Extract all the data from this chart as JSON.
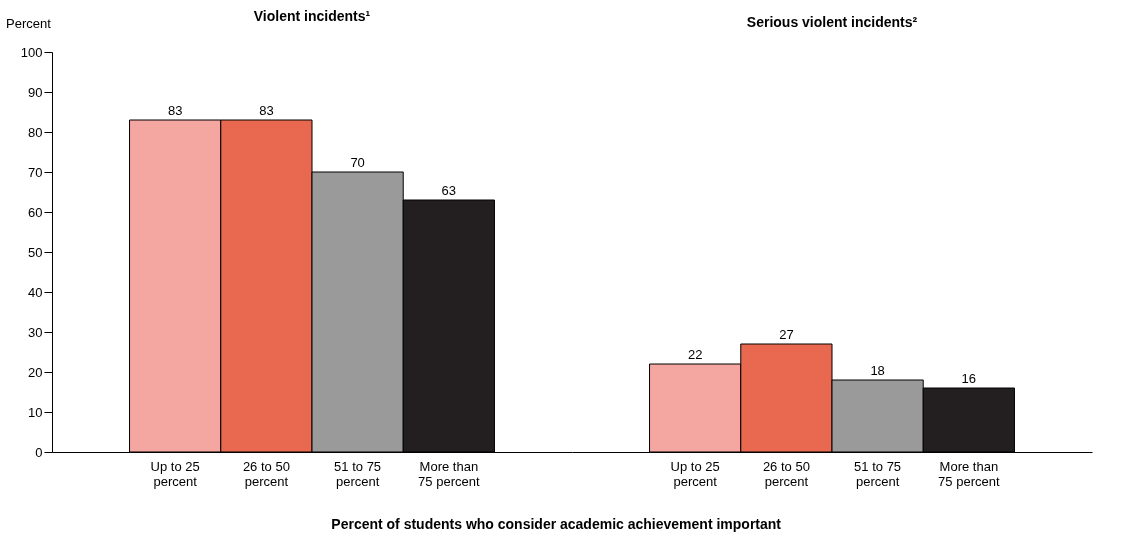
{
  "chart_data": [
    {
      "type": "bar",
      "title": "Violent incidents¹",
      "ylabel": "Percent",
      "xlabel": "Percent of students who consider academic achievement important",
      "categories": [
        "Up to 25 percent",
        "26 to 50 percent",
        "51 to 75 percent",
        "More than 75 percent"
      ],
      "values": [
        83,
        83,
        70,
        63
      ],
      "colors": [
        "#f4a6a0",
        "#e8694f",
        "#9a9a9a",
        "#231f20"
      ],
      "ylim": [
        0,
        100
      ],
      "yticks": [
        0,
        10,
        20,
        30,
        40,
        50,
        60,
        70,
        80,
        90,
        100
      ],
      "data_labels": true,
      "grid": false
    },
    {
      "type": "bar",
      "title": "Serious violent incidents²",
      "categories": [
        "Up to 25 percent",
        "26 to 50 percent",
        "51 to 75 percent",
        "More than 75 percent"
      ],
      "values": [
        22,
        27,
        18,
        16
      ],
      "colors": [
        "#f4a6a0",
        "#e8694f",
        "#9a9a9a",
        "#231f20"
      ],
      "ylim": [
        0,
        100
      ],
      "data_labels": true,
      "grid": false,
      "tick_labels": "x"
    }
  ]
}
